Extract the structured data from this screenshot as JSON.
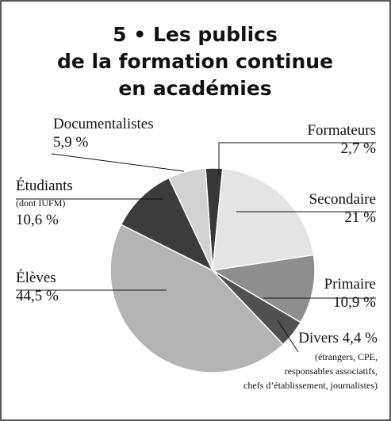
{
  "chart_data": {
    "type": "pie",
    "title": [
      "5 • Les publics",
      "de la formation continue",
      "en académies"
    ],
    "categories": [
      "Formateurs",
      "Secondaire",
      "Primaire",
      "Divers",
      "Élèves",
      "Étudiants",
      "Documentalistes"
    ],
    "values": [
      2.7,
      21,
      10.9,
      4.4,
      44.5,
      10.6,
      5.9
    ],
    "value_labels": [
      "2,7 %",
      "21 %",
      "10,9 %",
      "4,4 %",
      "44,5 %",
      "10,6 %",
      "5,9 %"
    ],
    "notes": [
      null,
      null,
      null,
      [
        "(étrangers, CPE,",
        "responsables associatifs,",
        "chefs d’établissement, journalistes)"
      ],
      null,
      [
        "(dont IUFM)"
      ],
      null
    ],
    "colors": [
      "#383838",
      "#e4e4e4",
      "#8e8e8e",
      "#505050",
      "#b4b4b4",
      "#3c3c3c",
      "#d2d2d2"
    ]
  }
}
